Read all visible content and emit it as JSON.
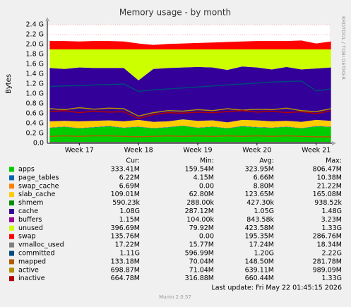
{
  "chart_data": {
    "type": "stacked_area",
    "title": "Memory usage - by month",
    "ylabel": "Bytes",
    "side_text": "RRDTOOL / TOBI OETIKER",
    "x": [
      16.5,
      16.75,
      17,
      17.25,
      17.5,
      17.75,
      18,
      18.25,
      18.5,
      18.75,
      19,
      19.25,
      19.5,
      19.75,
      20,
      20.25,
      20.5,
      20.75,
      21,
      21.25
    ],
    "xlim": [
      16.46,
      21.23
    ],
    "xticks": [
      {
        "value": 17,
        "label": "Week 17"
      },
      {
        "value": 18,
        "label": "Week 18"
      },
      {
        "value": 19,
        "label": "Week 19"
      },
      {
        "value": 20,
        "label": "Week 20"
      },
      {
        "value": 21,
        "label": "Week 21"
      }
    ],
    "ylim": [
      0,
      2.4
    ],
    "yticks": [
      {
        "value": 0,
        "label": "0.0"
      },
      {
        "value": 0.2,
        "label": "0.2 G"
      },
      {
        "value": 0.4,
        "label": "0.4 G"
      },
      {
        "value": 0.6,
        "label": "0.6 G"
      },
      {
        "value": 0.8,
        "label": "0.8 G"
      },
      {
        "value": 1.0,
        "label": "1.0 G"
      },
      {
        "value": 1.2,
        "label": "1.2 G"
      },
      {
        "value": 1.4,
        "label": "1.4 G"
      },
      {
        "value": 1.6,
        "label": "1.6 G"
      },
      {
        "value": 1.8,
        "label": "1.8 G"
      },
      {
        "value": 2.0,
        "label": "2.0 G"
      },
      {
        "value": 2.2,
        "label": "2.2 G"
      },
      {
        "value": 2.4,
        "label": "2.4 G"
      }
    ],
    "grid": true,
    "stat_headers": [
      "Cur:",
      "Min:",
      "Avg:",
      "Max:"
    ],
    "series": [
      {
        "name": "apps",
        "color": "#00CC00",
        "kind": "area",
        "stats": [
          "333.41M",
          "159.54M",
          "323.95M",
          "806.47M"
        ],
        "values": [
          0.31,
          0.33,
          0.3,
          0.32,
          0.34,
          0.31,
          0.33,
          0.3,
          0.32,
          0.35,
          0.31,
          0.33,
          0.3,
          0.34,
          0.32,
          0.31,
          0.33,
          0.3,
          0.34,
          0.33
        ]
      },
      {
        "name": "page_tables",
        "color": "#0066B3",
        "kind": "area",
        "stats": [
          "6.22M",
          "4.15M",
          "6.66M",
          "10.38M"
        ],
        "values": [
          0.006,
          0.006,
          0.006,
          0.006,
          0.006,
          0.006,
          0.006,
          0.006,
          0.006,
          0.006,
          0.006,
          0.006,
          0.006,
          0.006,
          0.006,
          0.006,
          0.006,
          0.006,
          0.006,
          0.006
        ]
      },
      {
        "name": "swap_cache",
        "color": "#FF8000",
        "kind": "area",
        "stats": [
          "6.69M",
          "0.00",
          "8.80M",
          "21.22M"
        ],
        "values": [
          0.007,
          0.007,
          0.007,
          0.007,
          0.007,
          0.007,
          0.007,
          0.007,
          0.007,
          0.007,
          0.007,
          0.007,
          0.007,
          0.007,
          0.007,
          0.007,
          0.007,
          0.007,
          0.007,
          0.007
        ]
      },
      {
        "name": "slab_cache",
        "color": "#FFCC00",
        "kind": "area",
        "stats": [
          "109.01M",
          "62.80M",
          "123.65M",
          "165.08M"
        ],
        "values": [
          0.12,
          0.11,
          0.13,
          0.12,
          0.11,
          0.12,
          0.13,
          0.12,
          0.11,
          0.12,
          0.13,
          0.12,
          0.11,
          0.12,
          0.13,
          0.12,
          0.11,
          0.12,
          0.12,
          0.11
        ]
      },
      {
        "name": "shmem",
        "color": "#008F00",
        "kind": "area",
        "stats": [
          "590.23k",
          "288.00k",
          "427.30k",
          "938.52k"
        ],
        "values": [
          0.001,
          0.001,
          0.001,
          0.001,
          0.001,
          0.001,
          0.001,
          0.001,
          0.001,
          0.001,
          0.001,
          0.001,
          0.001,
          0.001,
          0.001,
          0.001,
          0.001,
          0.001,
          0.001,
          0.001
        ]
      },
      {
        "name": "cache",
        "color": "#330099",
        "kind": "area",
        "stats": [
          "1.08G",
          "287.12M",
          "1.05G",
          "1.48G"
        ],
        "values": [
          1.08,
          1.05,
          1.09,
          1.07,
          1.06,
          1.08,
          0.8,
          1.07,
          1.08,
          1.05,
          1.09,
          1.07,
          1.06,
          1.08,
          1.07,
          1.05,
          1.09,
          1.06,
          1.04,
          1.08
        ]
      },
      {
        "name": "buffers",
        "color": "#990099",
        "kind": "area",
        "stats": [
          "1.15M",
          "104.00k",
          "843.58k",
          "3.23M"
        ],
        "values": [
          0.001,
          0.001,
          0.001,
          0.001,
          0.001,
          0.001,
          0.001,
          0.001,
          0.001,
          0.001,
          0.001,
          0.001,
          0.001,
          0.001,
          0.001,
          0.001,
          0.001,
          0.001,
          0.001,
          0.001
        ]
      },
      {
        "name": "unused",
        "color": "#CCFF00",
        "kind": "area",
        "stats": [
          "396.69M",
          "79.92M",
          "423.58M",
          "1.33G"
        ],
        "values": [
          0.375,
          0.395,
          0.365,
          0.375,
          0.375,
          0.375,
          0.625,
          0.395,
          0.375,
          0.365,
          0.355,
          0.365,
          0.415,
          0.345,
          0.365,
          0.405,
          0.355,
          0.405,
          0.385,
          0.365
        ]
      },
      {
        "name": "swap",
        "color": "#FF0000",
        "kind": "area",
        "stats": [
          "135.76M",
          "0.00",
          "195.35M",
          "286.76M"
        ],
        "values": [
          0.17,
          0.17,
          0.16,
          0.17,
          0.17,
          0.16,
          0.12,
          0.09,
          0.11,
          0.12,
          0.13,
          0.14,
          0.15,
          0.16,
          0.17,
          0.17,
          0.17,
          0.18,
          0.12,
          0.16
        ]
      },
      {
        "name": "vmalloc_used",
        "color": "#808080",
        "kind": "line",
        "stats": [
          "17.22M",
          "15.77M",
          "17.24M",
          "18.34M"
        ],
        "values": [
          0.017,
          0.017,
          0.017,
          0.017,
          0.017,
          0.017,
          0.017,
          0.017,
          0.017,
          0.017,
          0.017,
          0.017,
          0.017,
          0.017,
          0.017,
          0.017,
          0.017,
          0.017,
          0.017,
          0.017
        ]
      },
      {
        "name": "committed",
        "color": "#00487D",
        "kind": "line",
        "stats": [
          "1.11G",
          "596.99M",
          "1.20G",
          "2.22G"
        ],
        "values": [
          1.15,
          1.16,
          1.17,
          1.18,
          1.19,
          1.2,
          1.05,
          1.08,
          1.1,
          1.12,
          1.14,
          1.16,
          1.18,
          1.2,
          1.22,
          1.24,
          1.25,
          1.26,
          1.06,
          1.1
        ]
      },
      {
        "name": "mapped",
        "color": "#B35A00",
        "kind": "line",
        "stats": [
          "133.18M",
          "70.04M",
          "148.50M",
          "281.78M"
        ],
        "values": [
          0.14,
          0.15,
          0.14,
          0.15,
          0.15,
          0.14,
          0.13,
          0.14,
          0.15,
          0.14,
          0.15,
          0.14,
          0.15,
          0.14,
          0.15,
          0.14,
          0.15,
          0.14,
          0.13,
          0.13
        ]
      },
      {
        "name": "active",
        "color": "#B38F00",
        "kind": "line",
        "stats": [
          "698.87M",
          "71.04M",
          "639.11M",
          "989.09M"
        ],
        "values": [
          0.7,
          0.68,
          0.72,
          0.69,
          0.71,
          0.7,
          0.55,
          0.62,
          0.66,
          0.65,
          0.68,
          0.66,
          0.7,
          0.67,
          0.69,
          0.68,
          0.71,
          0.66,
          0.64,
          0.7
        ]
      },
      {
        "name": "inactive",
        "color": "#B30000",
        "kind": "line",
        "stats": [
          "664.78M",
          "316.88M",
          "660.44M",
          "1.33G"
        ],
        "values": [
          0.64,
          0.66,
          0.62,
          0.65,
          0.63,
          0.64,
          0.5,
          0.58,
          0.62,
          0.61,
          0.63,
          0.62,
          0.64,
          0.66,
          0.63,
          0.65,
          0.62,
          0.64,
          0.6,
          0.66
        ]
      }
    ],
    "last_update": "Last update: Fri May 22 01:45:15 2026",
    "footer": "Munin 2.0.57"
  }
}
